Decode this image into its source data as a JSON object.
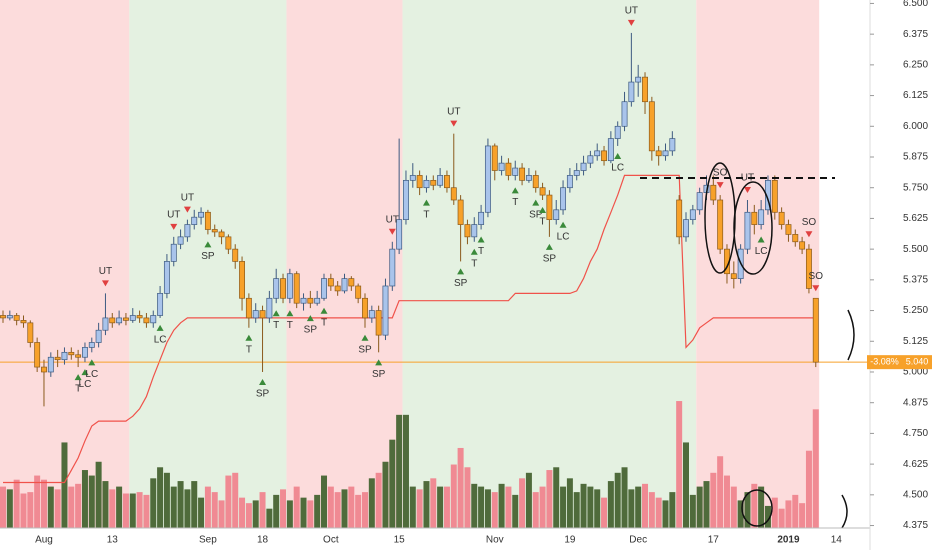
{
  "chart_data": {
    "type": "candlestick",
    "categories": [
      null,
      null,
      null,
      null,
      null,
      null,
      "Aug",
      null,
      null,
      null,
      null,
      null,
      null,
      null,
      null,
      null,
      "13",
      null,
      null,
      null,
      null,
      null,
      null,
      null,
      null,
      null,
      null,
      null,
      null,
      null,
      "Sep",
      null,
      null,
      null,
      null,
      null,
      null,
      null,
      "18",
      null,
      null,
      null,
      null,
      null,
      null,
      null,
      null,
      null,
      "Oct",
      null,
      null,
      null,
      null,
      null,
      null,
      null,
      null,
      null,
      "15",
      null,
      null,
      null,
      null,
      null,
      null,
      null,
      null,
      null,
      null,
      null,
      null,
      null,
      "Nov",
      null,
      null,
      null,
      null,
      null,
      null,
      null,
      null,
      null,
      null,
      "19",
      null,
      null,
      null,
      null,
      null,
      null,
      null,
      null,
      null,
      "Dec",
      null,
      null,
      null,
      null,
      null,
      null,
      null,
      null,
      null,
      null,
      "17",
      null,
      null,
      null,
      null,
      null,
      null,
      null,
      null,
      null,
      null,
      "2019",
      null,
      null,
      null,
      null,
      null,
      null,
      "14",
      null
    ],
    "candles": [
      [
        5.23,
        5.25,
        5.2,
        5.22
      ],
      [
        5.22,
        5.25,
        5.21,
        5.23
      ],
      [
        5.23,
        5.24,
        5.19,
        5.21
      ],
      [
        5.21,
        5.23,
        5.18,
        5.2
      ],
      [
        5.2,
        5.21,
        5.1,
        5.12
      ],
      [
        5.12,
        5.14,
        5.0,
        5.02
      ],
      [
        5.02,
        5.05,
        4.86,
        5.0
      ],
      [
        5.0,
        5.08,
        4.98,
        5.06
      ],
      [
        5.06,
        5.09,
        5.02,
        5.05
      ],
      [
        5.05,
        5.1,
        5.03,
        5.08
      ],
      [
        5.08,
        5.1,
        5.05,
        5.07
      ],
      [
        5.07,
        5.09,
        5.02,
        5.06
      ],
      [
        5.06,
        5.12,
        5.04,
        5.1
      ],
      [
        5.1,
        5.14,
        5.08,
        5.12
      ],
      [
        5.12,
        5.2,
        5.1,
        5.17
      ],
      [
        5.17,
        5.32,
        5.15,
        5.22
      ],
      [
        5.22,
        5.24,
        5.18,
        5.2
      ],
      [
        5.2,
        5.25,
        5.19,
        5.22
      ],
      [
        5.22,
        5.24,
        5.19,
        5.21
      ],
      [
        5.21,
        5.26,
        5.2,
        5.23
      ],
      [
        5.23,
        5.25,
        5.2,
        5.22
      ],
      [
        5.22,
        5.24,
        5.18,
        5.2
      ],
      [
        5.2,
        5.25,
        5.18,
        5.23
      ],
      [
        5.23,
        5.35,
        5.22,
        5.32
      ],
      [
        5.32,
        5.48,
        5.3,
        5.45
      ],
      [
        5.45,
        5.55,
        5.43,
        5.52
      ],
      [
        5.52,
        5.58,
        5.5,
        5.55
      ],
      [
        5.55,
        5.62,
        5.53,
        5.6
      ],
      [
        5.6,
        5.66,
        5.58,
        5.63
      ],
      [
        5.63,
        5.67,
        5.6,
        5.65
      ],
      [
        5.65,
        5.66,
        5.56,
        5.58
      ],
      [
        5.58,
        5.6,
        5.55,
        5.57
      ],
      [
        5.57,
        5.58,
        5.52,
        5.55
      ],
      [
        5.55,
        5.56,
        5.48,
        5.5
      ],
      [
        5.5,
        5.52,
        5.42,
        5.45
      ],
      [
        5.45,
        5.47,
        5.25,
        5.3
      ],
      [
        5.3,
        5.32,
        5.18,
        5.22
      ],
      [
        5.22,
        5.28,
        5.2,
        5.25
      ],
      [
        5.25,
        5.27,
        5.0,
        5.22
      ],
      [
        5.22,
        5.33,
        5.2,
        5.3
      ],
      [
        5.3,
        5.42,
        5.28,
        5.38
      ],
      [
        5.38,
        5.4,
        5.28,
        5.3
      ],
      [
        5.3,
        5.42,
        5.28,
        5.4
      ],
      [
        5.4,
        5.41,
        5.26,
        5.28
      ],
      [
        5.28,
        5.32,
        5.25,
        5.3
      ],
      [
        5.3,
        5.33,
        5.26,
        5.28
      ],
      [
        5.28,
        5.33,
        5.27,
        5.3
      ],
      [
        5.3,
        5.4,
        5.29,
        5.38
      ],
      [
        5.38,
        5.4,
        5.33,
        5.35
      ],
      [
        5.35,
        5.37,
        5.31,
        5.33
      ],
      [
        5.33,
        5.4,
        5.32,
        5.38
      ],
      [
        5.38,
        5.39,
        5.33,
        5.35
      ],
      [
        5.35,
        5.36,
        5.28,
        5.3
      ],
      [
        5.3,
        5.32,
        5.18,
        5.22
      ],
      [
        5.22,
        5.27,
        5.2,
        5.25
      ],
      [
        5.25,
        5.27,
        5.08,
        5.15
      ],
      [
        5.15,
        5.38,
        5.13,
        5.35
      ],
      [
        5.35,
        5.53,
        5.33,
        5.5
      ],
      [
        5.5,
        5.95,
        5.48,
        5.62
      ],
      [
        5.62,
        5.82,
        5.6,
        5.78
      ],
      [
        5.78,
        5.85,
        5.75,
        5.8
      ],
      [
        5.8,
        5.82,
        5.72,
        5.75
      ],
      [
        5.75,
        5.8,
        5.73,
        5.78
      ],
      [
        5.78,
        5.8,
        5.74,
        5.76
      ],
      [
        5.76,
        5.83,
        5.75,
        5.8
      ],
      [
        5.8,
        5.82,
        5.73,
        5.75
      ],
      [
        5.75,
        5.97,
        5.68,
        5.7
      ],
      [
        5.7,
        5.72,
        5.45,
        5.6
      ],
      [
        5.6,
        5.62,
        5.52,
        5.55
      ],
      [
        5.55,
        5.63,
        5.53,
        5.6
      ],
      [
        5.6,
        5.68,
        5.58,
        5.65
      ],
      [
        5.65,
        5.95,
        5.63,
        5.92
      ],
      [
        5.92,
        5.93,
        5.78,
        5.82
      ],
      [
        5.82,
        5.88,
        5.8,
        5.85
      ],
      [
        5.85,
        5.87,
        5.78,
        5.8
      ],
      [
        5.8,
        5.86,
        5.78,
        5.83
      ],
      [
        5.83,
        5.85,
        5.76,
        5.78
      ],
      [
        5.78,
        5.83,
        5.77,
        5.8
      ],
      [
        5.8,
        5.82,
        5.73,
        5.75
      ],
      [
        5.75,
        5.77,
        5.7,
        5.72
      ],
      [
        5.72,
        5.74,
        5.55,
        5.62
      ],
      [
        5.62,
        5.7,
        5.6,
        5.66
      ],
      [
        5.66,
        5.78,
        5.64,
        5.75
      ],
      [
        5.75,
        5.83,
        5.73,
        5.8
      ],
      [
        5.8,
        5.85,
        5.78,
        5.82
      ],
      [
        5.82,
        5.88,
        5.8,
        5.85
      ],
      [
        5.85,
        5.9,
        5.83,
        5.88
      ],
      [
        5.88,
        5.93,
        5.86,
        5.9
      ],
      [
        5.9,
        5.92,
        5.84,
        5.86
      ],
      [
        5.86,
        5.98,
        5.85,
        5.95
      ],
      [
        5.95,
        6.02,
        5.92,
        6.0
      ],
      [
        6.0,
        6.14,
        5.98,
        6.1
      ],
      [
        6.1,
        6.38,
        6.08,
        6.18
      ],
      [
        6.18,
        6.25,
        6.12,
        6.2
      ],
      [
        6.2,
        6.22,
        6.05,
        6.1
      ],
      [
        6.1,
        6.12,
        5.86,
        5.9
      ],
      [
        5.9,
        5.92,
        5.84,
        5.88
      ],
      [
        5.88,
        5.93,
        5.86,
        5.9
      ],
      [
        5.9,
        5.98,
        5.88,
        5.95
      ],
      [
        5.7,
        5.72,
        5.52,
        5.55
      ],
      [
        5.55,
        5.65,
        5.53,
        5.62
      ],
      [
        5.62,
        5.68,
        5.6,
        5.66
      ],
      [
        5.66,
        5.75,
        5.64,
        5.73
      ],
      [
        5.73,
        5.8,
        5.7,
        5.76
      ],
      [
        5.76,
        5.8,
        5.68,
        5.7
      ],
      [
        5.7,
        5.72,
        5.48,
        5.5
      ],
      [
        5.5,
        5.52,
        5.36,
        5.4
      ],
      [
        5.4,
        5.45,
        5.34,
        5.38
      ],
      [
        5.38,
        5.52,
        5.36,
        5.5
      ],
      [
        5.5,
        5.7,
        5.48,
        5.65
      ],
      [
        5.65,
        5.68,
        5.56,
        5.6
      ],
      [
        5.6,
        5.7,
        5.58,
        5.66
      ],
      [
        5.66,
        5.8,
        5.64,
        5.78
      ],
      [
        5.78,
        5.8,
        5.62,
        5.65
      ],
      [
        5.65,
        5.67,
        5.58,
        5.6
      ],
      [
        5.6,
        5.62,
        5.53,
        5.56
      ],
      [
        5.56,
        5.58,
        5.51,
        5.53
      ],
      [
        5.53,
        5.55,
        5.48,
        5.5
      ],
      [
        5.5,
        5.52,
        5.32,
        5.34
      ],
      [
        5.3,
        5.3,
        5.02,
        5.04
      ],
      null,
      null,
      null,
      null
    ],
    "volumes": [
      30,
      28,
      35,
      25,
      26,
      38,
      35,
      30,
      28,
      62,
      30,
      32,
      42,
      38,
      48,
      34,
      28,
      30,
      25,
      25,
      26,
      24,
      36,
      44,
      40,
      30,
      34,
      28,
      34,
      22,
      30,
      26,
      20,
      38,
      40,
      22,
      18,
      20,
      26,
      14,
      24,
      28,
      20,
      30,
      22,
      20,
      24,
      38,
      30,
      26,
      28,
      30,
      24,
      26,
      36,
      40,
      48,
      64,
      82,
      82,
      30,
      28,
      34,
      36,
      30,
      30,
      46,
      58,
      44,
      32,
      30,
      28,
      26,
      32,
      30,
      24,
      36,
      40,
      26,
      30,
      42,
      44,
      30,
      36,
      26,
      32,
      30,
      28,
      22,
      34,
      40,
      44,
      28,
      30,
      32,
      26,
      22,
      20,
      26,
      92,
      62,
      24,
      30,
      34,
      40,
      52,
      38,
      30,
      20,
      26,
      32,
      30,
      16,
      22,
      14,
      20,
      24,
      18,
      56,
      86,
      null,
      null,
      null,
      null
    ],
    "stop_line": [
      4.55,
      4.55,
      4.55,
      4.55,
      4.55,
      4.55,
      4.55,
      4.55,
      4.55,
      4.55,
      4.6,
      4.65,
      4.72,
      4.78,
      4.8,
      4.8,
      4.8,
      4.8,
      4.8,
      4.82,
      4.85,
      4.9,
      4.98,
      5.05,
      5.12,
      5.17,
      5.2,
      5.22,
      5.22,
      5.22,
      5.22,
      5.22,
      5.22,
      5.22,
      5.22,
      5.22,
      5.22,
      5.22,
      5.22,
      5.22,
      5.22,
      5.22,
      5.22,
      5.22,
      5.22,
      5.22,
      5.22,
      5.22,
      5.22,
      5.22,
      5.22,
      5.22,
      5.22,
      5.22,
      5.22,
      5.22,
      5.22,
      5.22,
      5.29,
      5.29,
      5.29,
      5.29,
      5.29,
      5.29,
      5.29,
      5.29,
      5.29,
      5.29,
      5.29,
      5.29,
      5.29,
      5.29,
      5.29,
      5.29,
      5.29,
      5.32,
      5.32,
      5.32,
      5.32,
      5.32,
      5.32,
      5.32,
      5.32,
      5.32,
      5.33,
      5.38,
      5.45,
      5.5,
      5.58,
      5.65,
      5.72,
      5.8,
      5.8,
      5.8,
      5.8,
      5.8,
      5.8,
      5.8,
      5.8,
      5.8,
      5.1,
      5.13,
      5.18,
      5.2,
      5.22,
      5.22,
      5.22,
      5.22,
      5.22,
      5.22,
      5.22,
      5.22,
      5.22,
      5.22,
      5.22,
      5.22,
      5.22,
      5.22,
      5.22,
      5.22,
      null,
      null,
      null,
      null
    ],
    "up_color": "#a9c4eb",
    "down_color": "#f7a12a",
    "volume_up_color": "#4f6b3b",
    "volume_down_color": "#f08a93",
    "stop_color": "#f0524a",
    "zones": [
      {
        "from": 0,
        "to": 18,
        "color": "#fcdcdc"
      },
      {
        "from": 19,
        "to": 41,
        "color": "#e4f1e1"
      },
      {
        "from": 42,
        "to": 58,
        "color": "#fcdcdc"
      },
      {
        "from": 59,
        "to": 101,
        "color": "#e4f1e1"
      },
      {
        "from": 102,
        "to": 119,
        "color": "#fcdcdc"
      }
    ],
    "annotations": [
      {
        "index": 11,
        "text": "T",
        "kind": "up"
      },
      {
        "index": 12,
        "text": "LC",
        "kind": "up"
      },
      {
        "index": 13,
        "text": "LC",
        "kind": "up"
      },
      {
        "index": 15,
        "text": "UT",
        "kind": "down"
      },
      {
        "index": 23,
        "text": "LC",
        "kind": "up"
      },
      {
        "index": 25,
        "text": "UT",
        "kind": "down"
      },
      {
        "index": 27,
        "text": "UT",
        "kind": "down"
      },
      {
        "index": 30,
        "text": "SP",
        "kind": "up"
      },
      {
        "index": 36,
        "text": "T",
        "kind": "up"
      },
      {
        "index": 38,
        "text": "SP",
        "kind": "up"
      },
      {
        "index": 40,
        "text": "T",
        "kind": "up"
      },
      {
        "index": 42,
        "text": "T",
        "kind": "up"
      },
      {
        "index": 45,
        "text": "SP",
        "kind": "up"
      },
      {
        "index": 47,
        "text": "T",
        "kind": "up"
      },
      {
        "index": 53,
        "text": "SP",
        "kind": "up"
      },
      {
        "index": 55,
        "text": "SP",
        "kind": "up"
      },
      {
        "index": 57,
        "text": "UT",
        "kind": "down"
      },
      {
        "index": 62,
        "text": "T",
        "kind": "up"
      },
      {
        "index": 66,
        "text": "UT",
        "kind": "down"
      },
      {
        "index": 67,
        "text": "SP",
        "kind": "up"
      },
      {
        "index": 69,
        "text": "T",
        "kind": "up"
      },
      {
        "index": 70,
        "text": "T",
        "kind": "up"
      },
      {
        "index": 75,
        "text": "T",
        "kind": "up"
      },
      {
        "index": 78,
        "text": "SP",
        "kind": "up"
      },
      {
        "index": 79,
        "text": "T",
        "kind": "up"
      },
      {
        "index": 80,
        "text": "SP",
        "kind": "up"
      },
      {
        "index": 82,
        "text": "LC",
        "kind": "up"
      },
      {
        "index": 90,
        "text": "LC",
        "kind": "up"
      },
      {
        "index": 92,
        "text": "UT",
        "kind": "down"
      },
      {
        "index": 105,
        "text": "SO",
        "kind": "down"
      },
      {
        "index": 109,
        "text": "UT",
        "kind": "down"
      },
      {
        "index": 111,
        "text": "LC",
        "kind": "up"
      },
      {
        "index": 118,
        "text": "SO",
        "kind": "down"
      },
      {
        "index": 119,
        "text": "SO",
        "kind": "down"
      }
    ],
    "last_price": {
      "value": 5.04,
      "label": "5.040"
    },
    "change": {
      "value": -3.08,
      "label": "-3.08%"
    },
    "ylim": [
      4.365,
      6.514
    ],
    "yticks": [
      {
        "value": 6.5,
        "label": "6.500"
      },
      6.375,
      {
        "value": 6.25,
        "label": "6.250"
      },
      6.125,
      {
        "value": 6,
        "label": "6.000"
      },
      5.875,
      {
        "value": 5.75,
        "label": "5.750"
      },
      5.625,
      {
        "value": 5.5,
        "label": "5.500"
      },
      5.375,
      {
        "value": 5.25,
        "label": "5.250"
      },
      5.125,
      {
        "value": 5,
        "label": "5.000"
      },
      4.875,
      {
        "value": 4.75,
        "label": "4.750"
      },
      4.625,
      {
        "value": 4.5,
        "label": "4.500"
      },
      4.375
    ],
    "volume_lim": [
      0,
      100
    ]
  }
}
